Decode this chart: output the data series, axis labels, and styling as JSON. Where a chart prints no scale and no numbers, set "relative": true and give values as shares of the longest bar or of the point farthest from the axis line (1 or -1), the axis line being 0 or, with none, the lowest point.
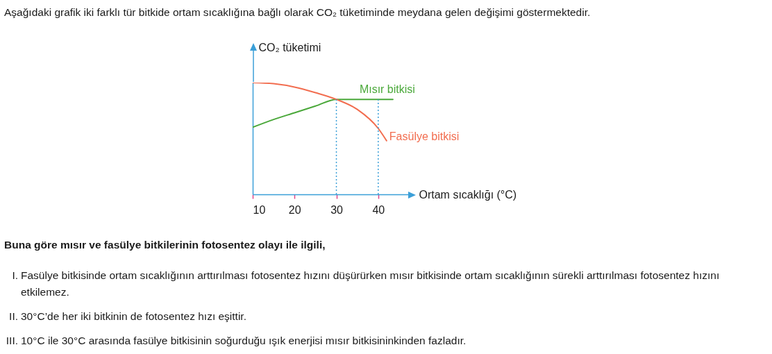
{
  "chart_data": {
    "type": "line",
    "title": "Aşağıdaki grafik iki farklı tür bitkide ortam sıcaklığına bağlı olarak CO₂ tüketiminde meydana gelen değişimi göstermektedir.",
    "xlabel": "Ortam sıcaklığı (°C)",
    "ylabel": "CO₂ tüketimi",
    "relative": true,
    "xlim": [
      10,
      48
    ],
    "xticks": [
      10,
      20,
      30,
      40
    ],
    "grid": false,
    "legend": false,
    "series": [
      {
        "name": "Mısır bitkisi",
        "color": "#4aa83a",
        "x": [
          10,
          15,
          20,
          25,
          30,
          40,
          43.5
        ],
        "values": [
          0.6,
          0.67,
          0.73,
          0.79,
          0.85,
          0.85,
          0.85
        ]
      },
      {
        "name": "Fasülye bitkisi",
        "color": "#f26d4f",
        "x": [
          10,
          15,
          20,
          25,
          30,
          35,
          40,
          42
        ],
        "values": [
          1,
          0.99,
          0.96,
          0.91,
          0.85,
          0.76,
          0.59,
          0.48
        ]
      }
    ],
    "ref_lines": [
      {
        "axis": "x",
        "value": 30,
        "color": "#3b9fd8",
        "line_style": "dotted"
      },
      {
        "axis": "x",
        "value": 40,
        "color": "#3b9fd8",
        "line_style": "dotted"
      }
    ],
    "annotations": [
      "Buna göre mısır ve fasülye bitkilerinin fotosentez olayı ile ilgili,",
      "I. Fasülye bitkisinde ortam sıcaklığının arttırılması fotosentez hızını düşürürken mısır bitkisinde ortam sıcaklığının sürekli arttırılması fotosentez hızını etkilemez.",
      "II. 30°C’de her iki bitkinin de fotosentez hızı eşittir.",
      "III. 10°C ile 30°C arasında fasülye bitkisinin soğurduğu ışık enerjisi mısır bitkisininkinden fazladır."
    ]
  }
}
